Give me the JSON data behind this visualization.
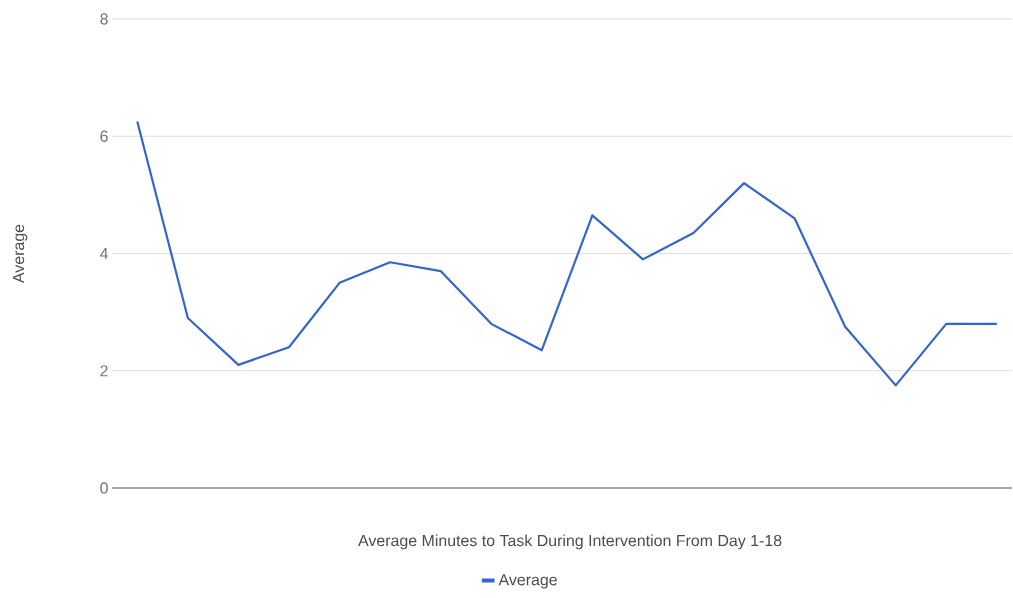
{
  "chart_data": {
    "type": "line",
    "xlabel": "Average Minutes to Task During Intervention From Day 1-18",
    "ylabel": "Average",
    "categories": [
      null,
      null,
      null,
      null,
      null,
      null,
      null,
      null,
      null,
      null,
      null,
      null,
      null,
      null,
      null,
      null,
      null,
      null
    ],
    "series": [
      {
        "name": "Average",
        "color": "#3366cc",
        "values": [
          6.25,
          2.9,
          2.1,
          2.4,
          3.5,
          3.85,
          3.7,
          2.8,
          2.35,
          4.65,
          3.9,
          4.35,
          5.2,
          4.6,
          2.75,
          1.75,
          2.8,
          2.8
        ]
      }
    ],
    "ylim": [
      0,
      8
    ],
    "yticks": [
      0,
      2,
      4,
      6,
      8
    ],
    "grid": "y",
    "legend": "bottom"
  }
}
